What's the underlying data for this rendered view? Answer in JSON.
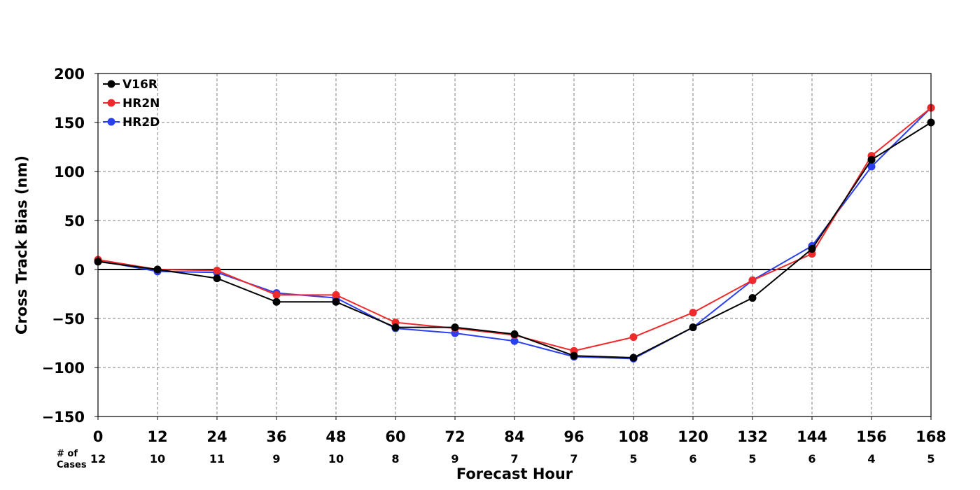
{
  "chart_data": {
    "type": "line",
    "title": "",
    "xlabel": "Forecast Hour",
    "ylabel": "Cross Track Bias (nm)",
    "x": [
      0,
      12,
      24,
      36,
      48,
      60,
      72,
      84,
      96,
      108,
      120,
      132,
      144,
      156,
      168
    ],
    "xlim": [
      0,
      168
    ],
    "ylim": [
      -150,
      200
    ],
    "yticks": [
      -150,
      -100,
      -50,
      0,
      50,
      100,
      150,
      200
    ],
    "grid": true,
    "legend_position": "top-left",
    "cases_label": "# of Cases",
    "cases_label_lines": [
      "# of",
      "Cases"
    ],
    "cases": [
      12,
      10,
      11,
      9,
      10,
      8,
      9,
      7,
      7,
      5,
      6,
      5,
      6,
      4,
      5
    ],
    "series": [
      {
        "name": "HR2D",
        "color": "#2b3ff2",
        "values": [
          9,
          -2,
          -3,
          -24,
          -29,
          -60,
          -65,
          -73,
          -89,
          -91,
          -59,
          -11,
          24,
          105,
          165
        ]
      },
      {
        "name": "HR2N",
        "color": "#f02a2a",
        "values": [
          10,
          0,
          -1,
          -26,
          -26,
          -54,
          -60,
          -67,
          -83,
          -69,
          -44,
          -11,
          16,
          116,
          165
        ]
      },
      {
        "name": "V16R",
        "color": "#000000",
        "values": [
          8,
          0,
          -9,
          -33,
          -33,
          -59,
          -59,
          -66,
          -88,
          -90,
          -59,
          -29,
          21,
          112,
          150
        ]
      }
    ],
    "legend_order": [
      "V16R",
      "HR2N",
      "HR2D"
    ]
  }
}
